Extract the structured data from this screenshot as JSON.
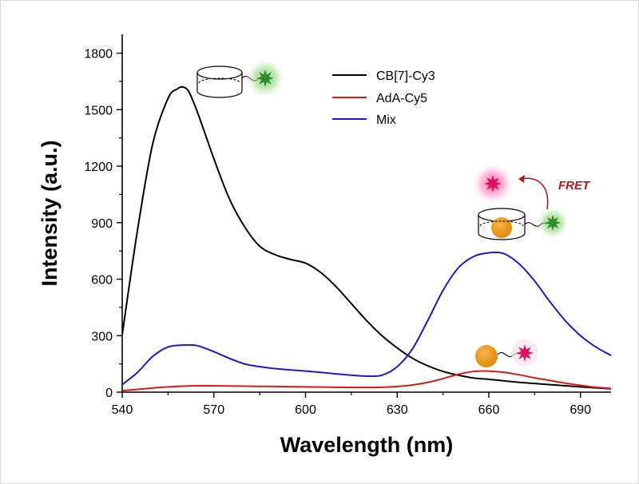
{
  "chart_data": {
    "type": "line",
    "xlabel": "Wavelength (nm)",
    "ylabel": "Intensity (a.u.)",
    "xlim": [
      540,
      700
    ],
    "ylim": [
      0,
      1900
    ],
    "xticks": [
      540,
      570,
      600,
      630,
      660,
      690
    ],
    "yticks": [
      0,
      300,
      600,
      900,
      1200,
      1500,
      1800
    ],
    "legend_position": "top-center",
    "series": [
      {
        "name": "CB[7]-Cy3",
        "color": "#000000",
        "x": [
          540,
          545,
          550,
          555,
          558,
          560,
          562,
          565,
          570,
          575,
          580,
          585,
          590,
          595,
          600,
          605,
          610,
          615,
          620,
          625,
          630,
          635,
          640,
          645,
          650,
          655,
          660,
          665,
          670,
          675,
          680,
          685,
          690,
          695,
          700
        ],
        "y": [
          305,
          860,
          1320,
          1560,
          1610,
          1620,
          1590,
          1470,
          1240,
          1030,
          880,
          775,
          730,
          705,
          685,
          635,
          560,
          470,
          380,
          300,
          235,
          180,
          140,
          110,
          90,
          75,
          68,
          60,
          52,
          46,
          40,
          34,
          28,
          23,
          18
        ]
      },
      {
        "name": "AdA-Cy5",
        "color": "#d61a1a",
        "x": [
          540,
          545,
          550,
          555,
          560,
          565,
          570,
          575,
          580,
          585,
          590,
          595,
          600,
          605,
          610,
          615,
          620,
          625,
          630,
          635,
          640,
          645,
          650,
          655,
          660,
          665,
          670,
          675,
          680,
          685,
          690,
          695,
          700
        ],
        "y": [
          8,
          15,
          22,
          28,
          32,
          34,
          34,
          33,
          32,
          31,
          30,
          29,
          28,
          27,
          26,
          25,
          25,
          26,
          30,
          38,
          52,
          72,
          95,
          110,
          112,
          105,
          92,
          76,
          62,
          48,
          36,
          26,
          20
        ]
      },
      {
        "name": "Mix",
        "color": "#1a1acc",
        "x": [
          540,
          545,
          550,
          555,
          560,
          563,
          565,
          570,
          575,
          580,
          585,
          590,
          595,
          600,
          605,
          610,
          615,
          620,
          625,
          630,
          635,
          640,
          645,
          650,
          655,
          660,
          665,
          670,
          675,
          680,
          685,
          690,
          695,
          700
        ],
        "y": [
          40,
          105,
          190,
          240,
          250,
          250,
          245,
          215,
          180,
          150,
          135,
          125,
          118,
          112,
          105,
          97,
          90,
          85,
          90,
          135,
          230,
          380,
          540,
          660,
          720,
          740,
          735,
          680,
          590,
          480,
          380,
          300,
          240,
          195
        ]
      }
    ],
    "annotations": {
      "fret_label": "FRET",
      "fret_color": "#b3141d"
    }
  }
}
